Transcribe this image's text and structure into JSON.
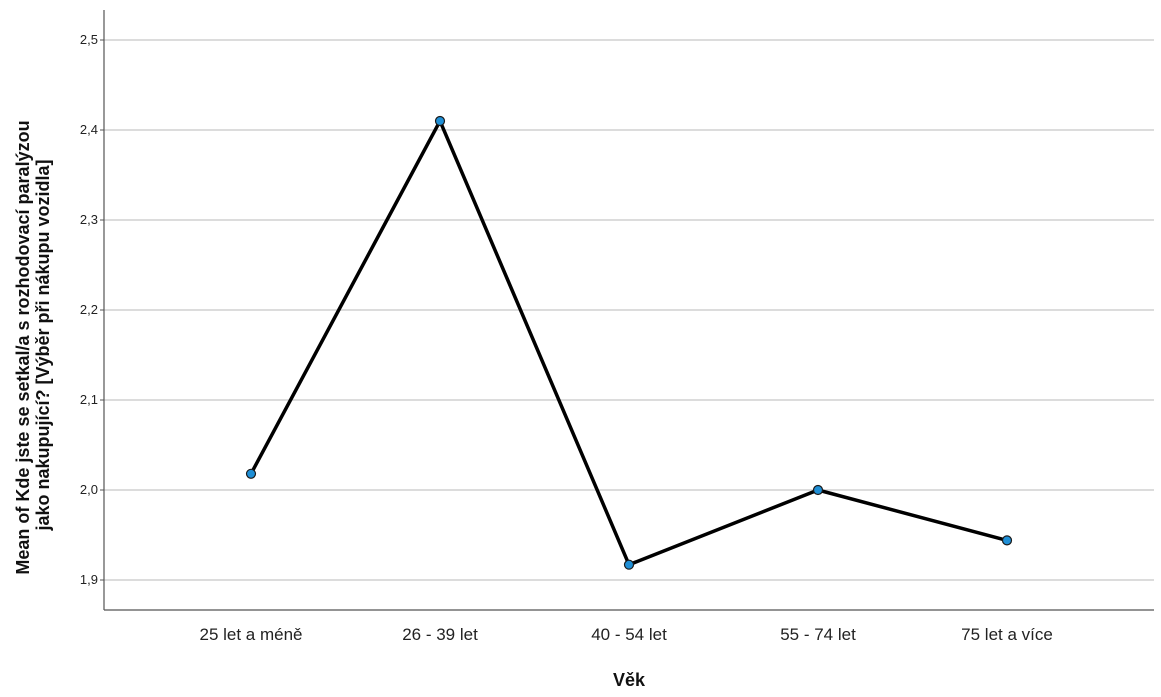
{
  "chart_data": {
    "type": "line",
    "categories": [
      "25 let a méně",
      "26 - 39 let",
      "40 - 54 let",
      "55 - 74 let",
      "75 let a více"
    ],
    "series": [
      {
        "values": [
          2.018,
          2.41,
          1.917,
          2.0,
          1.944
        ]
      }
    ],
    "xlabel": "Věk",
    "ylabel_lines": [
      "Mean of Kde jste se setkal/a s rozhodovací paralýzou",
      "jako nakupující? [Výběr při nákupu vozidla]"
    ],
    "ylim": [
      1.87,
      2.535
    ],
    "yticks": [
      "1,9",
      "2,0",
      "2,1",
      "2,2",
      "2,3",
      "2,4",
      "2,5"
    ],
    "ytick_values": [
      1.9,
      2.0,
      2.1,
      2.2,
      2.3,
      2.4,
      2.5
    ],
    "grid": true,
    "colors": {
      "line": "#000000",
      "marker_fill": "#1f8fd6",
      "marker_stroke": "#1a1a1a",
      "grid": "#c8c8c8",
      "axis": "#555555"
    }
  }
}
